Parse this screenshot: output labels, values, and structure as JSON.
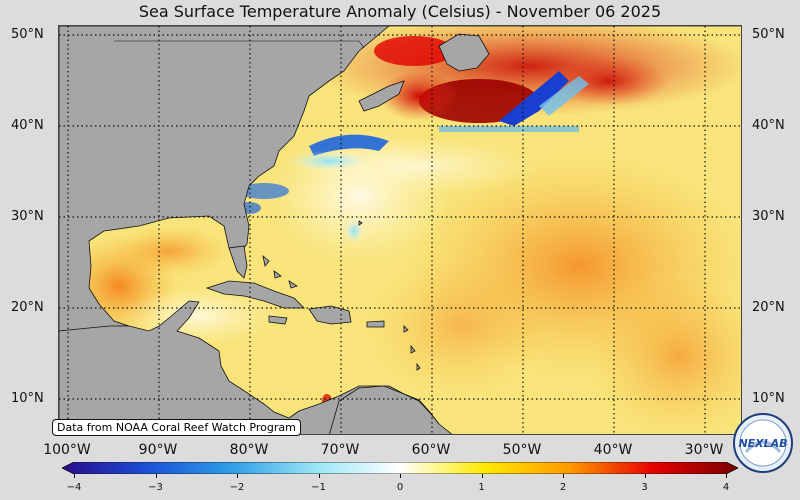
{
  "map": {
    "title": "Sea Surface Temperature Anomaly (Celsius) - November 06 2025",
    "source_note": "Data from NOAA Coral Reef Watch Program",
    "lat_labels": [
      "50°N",
      "40°N",
      "30°N",
      "20°N",
      "10°N"
    ],
    "lon_labels": [
      "100°W",
      "90°W",
      "80°W",
      "70°W",
      "60°W",
      "50°W",
      "40°W",
      "30°W"
    ],
    "colorbar": {
      "min": -4,
      "max": 4,
      "ticks": [
        "−4",
        "−3",
        "−2",
        "−1",
        "0",
        "1",
        "2",
        "3",
        "4"
      ],
      "colors": [
        "#2a0a8a",
        "#1a4fd6",
        "#2f9fe8",
        "#9ae6f5",
        "#ffffff",
        "#ffea00",
        "#ff9a00",
        "#e60000",
        "#7a0000"
      ]
    },
    "land_color": "#a6a6a6",
    "logo_text": "NEXLAB"
  }
}
